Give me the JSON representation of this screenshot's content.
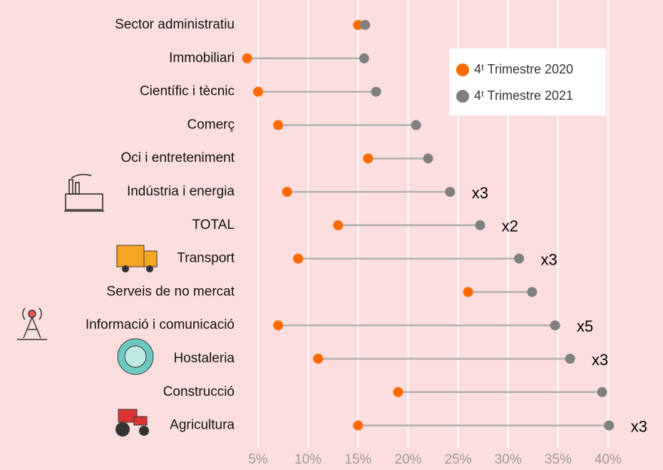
{
  "chart_data": {
    "type": "dumbbell",
    "categories": [
      "Sector administratiu",
      "Immobiliari",
      "Científic i tècnic",
      "Comerç",
      "Oci i entreteniment",
      "Indústria i energia",
      "TOTAL",
      "Transport",
      "Serveis de no mercat",
      "Informació i comunicació",
      "Hostaleria",
      "Construcció",
      "Agricultura"
    ],
    "series": [
      {
        "name": "4ᵗ Trimestre 2020",
        "color": "#ff6a00",
        "values": [
          15.0,
          3.9,
          5.0,
          7.0,
          16.0,
          7.9,
          13.0,
          9.0,
          26.0,
          7.0,
          11.0,
          19.0,
          15.0
        ]
      },
      {
        "name": "4ᵗ Trimestre 2021",
        "color": "#808080",
        "values": [
          15.7,
          15.6,
          16.8,
          20.8,
          22.0,
          24.2,
          27.2,
          31.1,
          32.4,
          34.7,
          36.2,
          39.4,
          40.1
        ]
      }
    ],
    "annotations": [
      null,
      null,
      null,
      null,
      null,
      "x3",
      "x2",
      "x3",
      null,
      "x5",
      "x3",
      null,
      "x3"
    ],
    "xlim": [
      3,
      41
    ],
    "xticks": [
      {
        "value": 5,
        "label": "5%"
      },
      {
        "value": 10,
        "label": "10%"
      },
      {
        "value": 15,
        "label": "15%"
      },
      {
        "value": 20,
        "label": "20%"
      },
      {
        "value": 25,
        "label": "25%"
      },
      {
        "value": 30,
        "label": "30%"
      },
      {
        "value": 35,
        "label": "35%"
      },
      {
        "value": 40,
        "label": "40%"
      }
    ],
    "grid": true,
    "legend": "upper right",
    "connector_color": "#b0b0b0"
  }
}
